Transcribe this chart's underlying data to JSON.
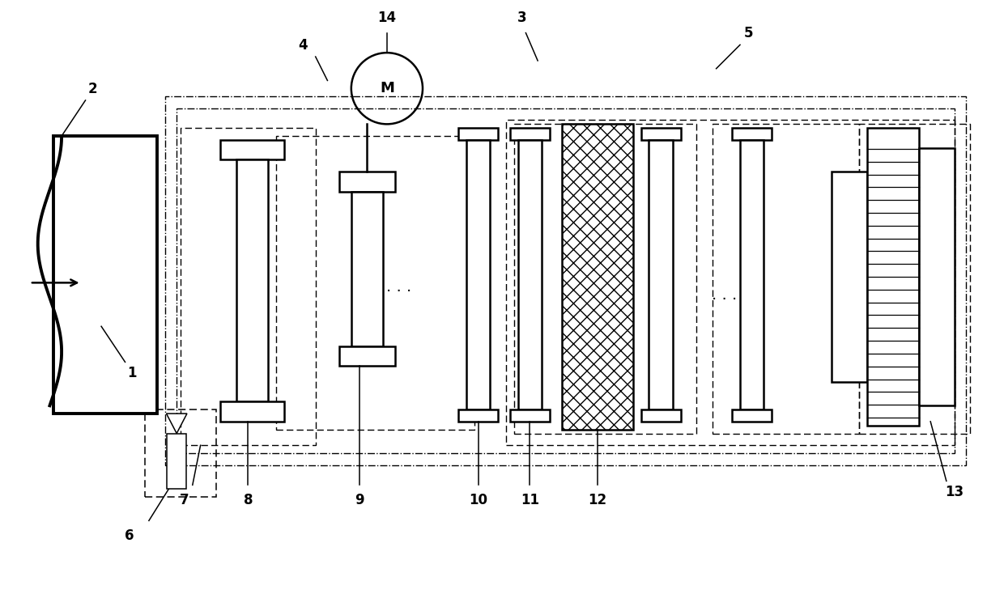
{
  "bg_color": "#ffffff",
  "line_color": "#000000",
  "figsize": [
    12.4,
    7.34
  ],
  "dpi": 100
}
